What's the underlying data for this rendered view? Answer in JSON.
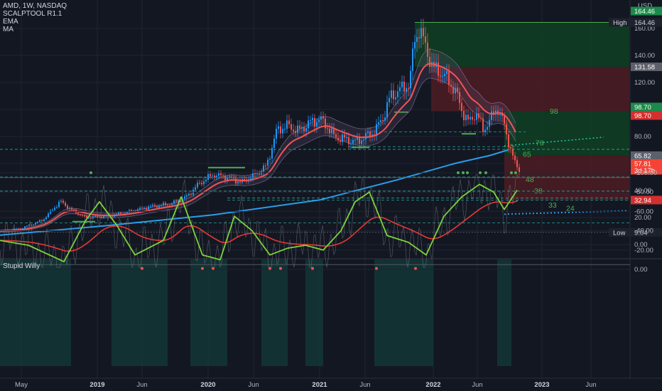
{
  "header": {
    "symbol_line": "AMD, 1W, NASDAQ",
    "indicators": [
      "SCALPTOOL R1.1",
      "EMA",
      "MA"
    ],
    "currency": "USD"
  },
  "oscillator": {
    "title": "Stupid Willy"
  },
  "price_axis": {
    "ticks": [
      "160.00",
      "140.00",
      "120.00",
      "100.00",
      "80.00",
      "60.00",
      "40.00",
      "20.00",
      "0.00"
    ],
    "tags": [
      {
        "text": "164.46",
        "bg": "#1b8a4a",
        "fg": "#ffffff"
      },
      {
        "text": "164.46",
        "bg": "#1e222d",
        "fg": "#d1d4dc",
        "label": "High"
      },
      {
        "text": "131.58",
        "bg": "#5d606b",
        "fg": "#ffffff"
      },
      {
        "text": "98.70",
        "bg": "#1b8a4a",
        "fg": "#ffffff"
      },
      {
        "text": "98.70",
        "bg": "#d32f2f",
        "fg": "#ffffff"
      },
      {
        "text": "65.82",
        "bg": "#5d606b",
        "fg": "#ffffff"
      },
      {
        "text": "57.81",
        "bg": "#f44336",
        "fg": "#ffffff"
      },
      {
        "text": "3d 17h",
        "bg": "#f44336",
        "fg": "#ffffff"
      },
      {
        "text": "32.94",
        "bg": "#d32f2f",
        "fg": "#ffffff"
      },
      {
        "text": "9.04",
        "bg": "#1e222d",
        "fg": "#d1d4dc",
        "label": "Low"
      }
    ]
  },
  "osc_axis": {
    "ticks": [
      "0.00",
      "-20.00",
      "-40.00",
      "-60.00",
      "-80.00",
      "-100.00"
    ]
  },
  "time_axis": {
    "ticks": [
      {
        "label": "May",
        "bold": false
      },
      {
        "label": "2019",
        "bold": true
      },
      {
        "label": "Jun",
        "bold": false
      },
      {
        "label": "2020",
        "bold": true
      },
      {
        "label": "Jun",
        "bold": false
      },
      {
        "label": "2021",
        "bold": true
      },
      {
        "label": "Jun",
        "bold": false
      },
      {
        "label": "2022",
        "bold": true
      },
      {
        "label": "Jun",
        "bold": false
      },
      {
        "label": "2023",
        "bold": true
      },
      {
        "label": "Jun",
        "bold": false
      }
    ]
  },
  "levels": [
    "98",
    "73",
    "65",
    "48",
    "38",
    "33",
    "24"
  ],
  "colors": {
    "background": "#131722",
    "up": "#2196f3",
    "down": "#ef5350",
    "ema": "#f05454",
    "ma": "#2a9de8",
    "osc_fast": "#7bd33a",
    "osc_slow": "#e53935",
    "level_dash": "#26a69a",
    "zone_green": "#0f3d23",
    "zone_red": "#4a1c24"
  }
}
